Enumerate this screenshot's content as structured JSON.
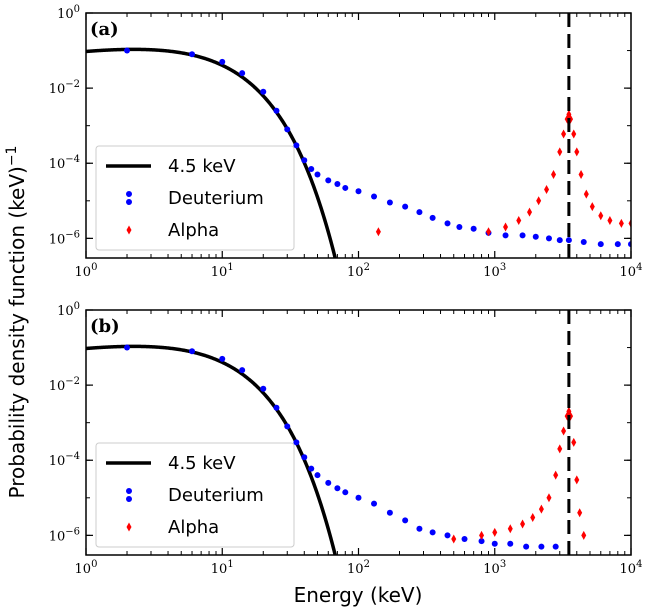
{
  "figure": {
    "ylabel": "Probability density function (keV)",
    "ylabel_exp": "−1",
    "xlabel": "Energy (keV)"
  },
  "chart_data": [
    {
      "type": "scatter",
      "panel_label": "(a)",
      "xscale": "log",
      "yscale": "log",
      "xlim": [
        1,
        10000
      ],
      "ylim": [
        3e-07,
        1
      ],
      "xticks": [
        1,
        10,
        100,
        1000,
        10000
      ],
      "xtick_base": "10",
      "xtick_exps": [
        "0",
        "1",
        "2",
        "3",
        "4"
      ],
      "yticks": [
        1e-06,
        0.0001,
        0.01,
        1
      ],
      "ytick_base": "10",
      "ytick_exps": [
        "−6",
        "−4",
        "−2",
        "0"
      ],
      "vline_x": 3500,
      "legend": {
        "position": "lower-left",
        "entries": [
          "4.5 keV",
          "Deuterium",
          "Alpha"
        ]
      },
      "series": [
        {
          "name": "4.5 keV",
          "kind": "line",
          "color": "#000000",
          "temperature_keV": 4.5
        },
        {
          "name": "Deuterium",
          "kind": "scatter",
          "color": "#0000ff",
          "x": [
            2,
            6,
            10,
            14,
            20,
            25,
            30,
            35,
            40,
            45,
            50,
            60,
            70,
            80,
            100,
            130,
            170,
            220,
            280,
            350,
            450,
            550,
            700,
            900,
            1200,
            1600,
            2000,
            2500,
            3000,
            3500,
            4500,
            6000,
            8000,
            10000
          ],
          "y": [
            0.1,
            0.08,
            0.05,
            0.025,
            0.008,
            0.0025,
            0.0008,
            0.0003,
            0.00012,
            7e-05,
            5e-05,
            3.5e-05,
            2.8e-05,
            2.2e-05,
            1.8e-05,
            1.3e-05,
            9e-06,
            7e-06,
            5e-06,
            3.5e-06,
            2.5e-06,
            2e-06,
            1.8e-06,
            1.4e-06,
            1.2e-06,
            1.2e-06,
            1.1e-06,
            1e-06,
            9e-07,
            9e-07,
            8e-07,
            7e-07,
            7e-07,
            7e-07
          ]
        },
        {
          "name": "Alpha",
          "kind": "scatter",
          "color": "#ff0000",
          "x": [
            140,
            900,
            1200,
            1500,
            1800,
            2100,
            2400,
            2700,
            3000,
            3200,
            3400,
            3500,
            3600,
            3800,
            4000,
            4300,
            4700,
            5200,
            6000,
            7000,
            8500,
            10000
          ],
          "y": [
            1.5e-06,
            1.5e-06,
            2e-06,
            3e-06,
            5e-06,
            1e-05,
            2e-05,
            5e-05,
            0.0002,
            0.0006,
            0.0015,
            0.002,
            0.0015,
            0.0006,
            0.0002,
            5e-05,
            1.5e-05,
            7e-06,
            4e-06,
            3e-06,
            2.5e-06,
            2.5e-06
          ]
        }
      ]
    },
    {
      "type": "scatter",
      "panel_label": "(b)",
      "xscale": "log",
      "yscale": "log",
      "xlim": [
        1,
        10000
      ],
      "ylim": [
        3e-07,
        1
      ],
      "xticks": [
        1,
        10,
        100,
        1000,
        10000
      ],
      "xtick_base": "10",
      "xtick_exps": [
        "0",
        "1",
        "2",
        "3",
        "4"
      ],
      "yticks": [
        1e-06,
        0.0001,
        0.01,
        1
      ],
      "ytick_base": "10",
      "ytick_exps": [
        "−6",
        "−4",
        "−2",
        "0"
      ],
      "vline_x": 3500,
      "legend": {
        "position": "lower-left",
        "entries": [
          "4.5 keV",
          "Deuterium",
          "Alpha"
        ]
      },
      "series": [
        {
          "name": "4.5 keV",
          "kind": "line",
          "color": "#000000",
          "temperature_keV": 4.5
        },
        {
          "name": "Deuterium",
          "kind": "scatter",
          "color": "#0000ff",
          "x": [
            2,
            6,
            10,
            14,
            20,
            25,
            30,
            35,
            40,
            45,
            50,
            60,
            70,
            80,
            100,
            130,
            170,
            220,
            280,
            350,
            450,
            600,
            800,
            1000,
            1300,
            1700,
            2200,
            2800
          ],
          "y": [
            0.1,
            0.08,
            0.05,
            0.025,
            0.008,
            0.0025,
            0.0008,
            0.0003,
            0.00012,
            6e-05,
            4e-05,
            2.5e-05,
            1.8e-05,
            1.4e-05,
            1e-05,
            7e-06,
            4e-06,
            2.5e-06,
            1.5e-06,
            1.2e-06,
            1e-06,
            8e-07,
            7e-07,
            6e-07,
            6e-07,
            5e-07,
            5e-07,
            5e-07
          ]
        },
        {
          "name": "Alpha",
          "kind": "scatter",
          "color": "#ff0000",
          "x": [
            500,
            800,
            1000,
            1300,
            1600,
            1900,
            2200,
            2500,
            2800,
            3000,
            3200,
            3400,
            3500,
            3600,
            3800,
            4000,
            4200,
            4500
          ],
          "y": [
            8e-07,
            1e-06,
            1.2e-06,
            1.5e-06,
            2e-06,
            3e-06,
            5e-06,
            1e-05,
            4e-05,
            0.0002,
            0.0006,
            0.0015,
            0.002,
            0.0015,
            0.0003,
            3e-05,
            4e-06,
            1e-06
          ]
        }
      ]
    }
  ]
}
